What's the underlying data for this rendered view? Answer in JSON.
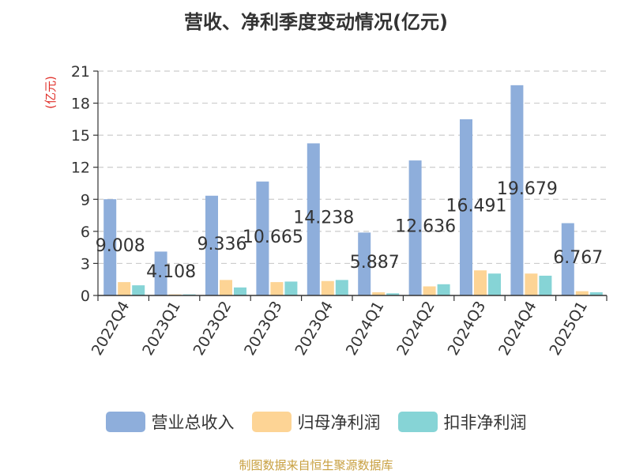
{
  "title": "营收、净利季度变动情况(亿元)",
  "footer": "制图数据来自恒生聚源数据库",
  "chart_data": {
    "type": "bar",
    "title": "营收、净利季度变动情况(亿元)",
    "ylabel": "(亿元)",
    "ylim": [
      0,
      21
    ],
    "yticks": [
      0,
      3,
      6,
      9,
      12,
      15,
      18,
      21
    ],
    "grid": true,
    "legend_position": "bottom",
    "categories": [
      "2022Q4",
      "2023Q1",
      "2023Q2",
      "2023Q3",
      "2023Q4",
      "2024Q1",
      "2024Q2",
      "2024Q3",
      "2024Q4",
      "2025Q1"
    ],
    "series": [
      {
        "name": "营业总收入",
        "color": "#8eaedb",
        "values": [
          9.008,
          4.108,
          9.336,
          10.665,
          14.238,
          5.887,
          12.636,
          16.491,
          19.679,
          6.767
        ],
        "labels": [
          "9.008",
          "4.108",
          "9.336",
          "10.665",
          "14.238",
          "5.887",
          "12.636",
          "16.491",
          "19.679",
          "6.767"
        ]
      },
      {
        "name": "归母净利润",
        "color": "#fdd495",
        "values": [
          1.25,
          0.1,
          1.45,
          1.25,
          1.35,
          0.3,
          0.85,
          2.35,
          2.05,
          0.4
        ]
      },
      {
        "name": "扣非净利润",
        "color": "#86d4d6",
        "values": [
          0.95,
          0.1,
          0.75,
          1.3,
          1.45,
          0.2,
          1.05,
          2.05,
          1.85,
          0.3
        ]
      }
    ]
  }
}
